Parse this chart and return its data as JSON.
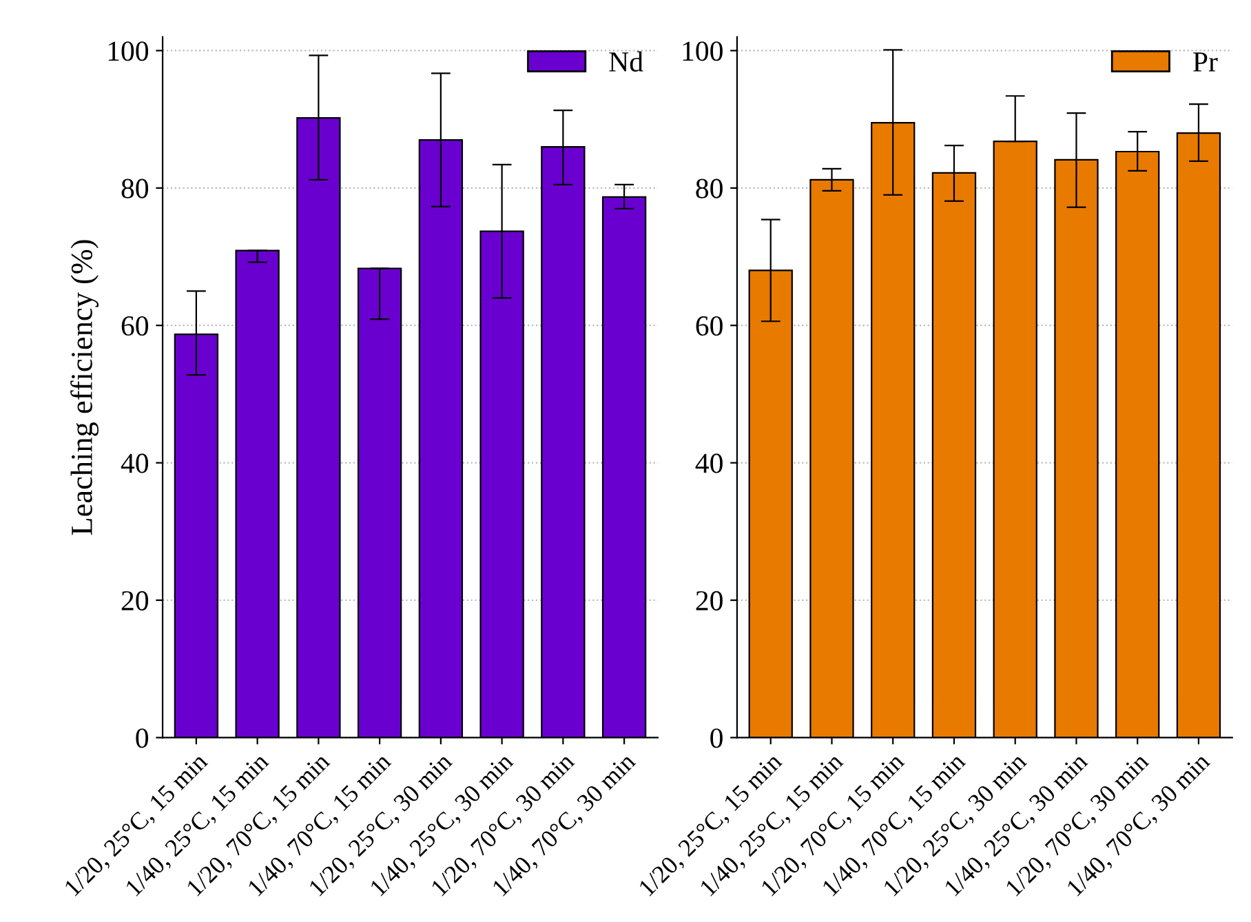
{
  "chart_data": [
    {
      "type": "bar",
      "ylabel": "Leaching efficiency (%)",
      "categories": [
        "1/20, 25°C, 15 min",
        "1/40, 25°C, 15 min",
        "1/20, 70°C, 15 min",
        "1/40, 70°C, 15 min",
        "1/20, 25°C, 30 min",
        "1/40, 25°C, 30 min",
        "1/20, 70°C, 30 min",
        "1/40, 70°C, 30 min"
      ],
      "series": [
        {
          "name": "Nd",
          "color": "#6a00d0",
          "values": [
            58.7,
            70.9,
            90.2,
            68.3,
            87.0,
            73.7,
            86.0,
            78.7
          ],
          "errors": [
            [
              52.8,
              65.0
            ],
            [
              69.2,
              70.9
            ],
            [
              81.2,
              99.3
            ],
            [
              60.9,
              68.3
            ],
            [
              77.3,
              96.7
            ],
            [
              64.0,
              83.4
            ],
            [
              80.5,
              91.3
            ],
            [
              77.0,
              80.5
            ]
          ]
        }
      ],
      "ylim": [
        0,
        102
      ],
      "yticks": [
        0,
        20,
        40,
        60,
        80,
        100
      ],
      "grid": "y",
      "legend": "top right"
    },
    {
      "type": "bar",
      "categories": [
        "1/20, 25°C, 15 min",
        "1/40, 25°C, 15 min",
        "1/20, 70°C, 15 min",
        "1/40, 70°C, 15 min",
        "1/20, 25°C, 30 min",
        "1/40, 25°C, 30 min",
        "1/20, 70°C, 30 min",
        "1/40, 70°C, 30 min"
      ],
      "series": [
        {
          "name": "Pr",
          "color": "#e87a00",
          "values": [
            68.0,
            81.2,
            89.5,
            82.2,
            86.8,
            84.1,
            85.3,
            88.0
          ],
          "errors": [
            [
              60.6,
              75.4
            ],
            [
              79.6,
              82.8
            ],
            [
              79.0,
              100.1
            ],
            [
              78.1,
              86.2
            ],
            [
              86.8,
              93.4
            ],
            [
              77.2,
              90.9
            ],
            [
              82.5,
              88.2
            ],
            [
              83.9,
              92.2
            ]
          ]
        }
      ],
      "ylim": [
        0,
        102
      ],
      "yticks": [
        0,
        20,
        40,
        60,
        80,
        100
      ],
      "grid": "y",
      "legend": "top right"
    }
  ]
}
